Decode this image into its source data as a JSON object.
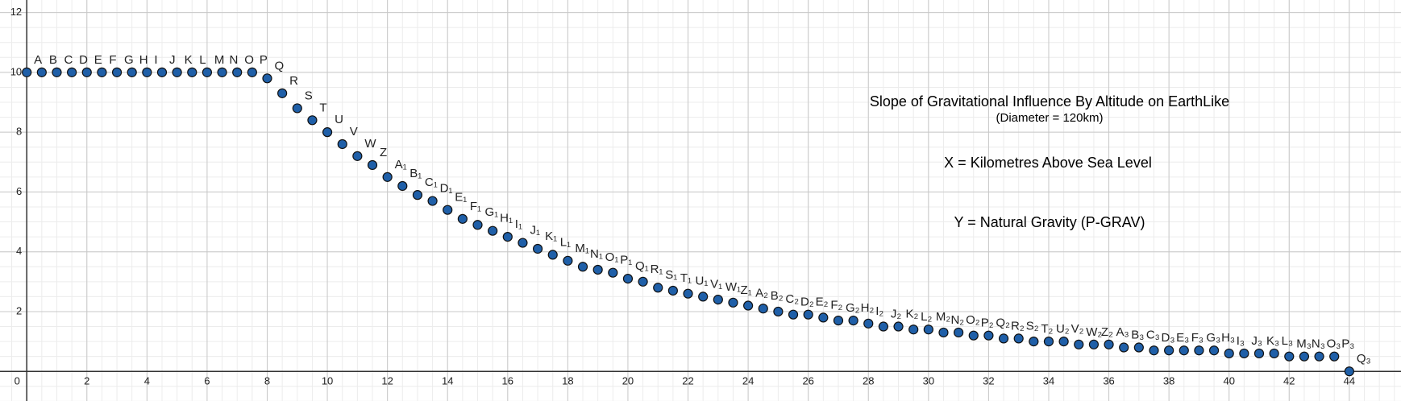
{
  "chart_data": {
    "type": "scatter",
    "annotations": [
      "Slope of Gravitational Influence By Altitude on EarthLike",
      "(Diameter = 120km)",
      "X = Kilometres Above Sea Level",
      "Y = Natural Gravity (P-GRAV)"
    ],
    "x": [
      0,
      0.5,
      1,
      1.5,
      2,
      2.5,
      3,
      3.5,
      4,
      4.5,
      5,
      5.5,
      6,
      6.5,
      7,
      7.5,
      8,
      8.5,
      9,
      9.5,
      10,
      10.5,
      11,
      11.5,
      12,
      12.5,
      13,
      13.5,
      14,
      14.5,
      15,
      15.5,
      16,
      16.5,
      17,
      17.5,
      18,
      18.5,
      19,
      19.5,
      20,
      20.5,
      21,
      21.5,
      22,
      22.5,
      23,
      23.5,
      24,
      24.5,
      25,
      25.5,
      26,
      26.5,
      27,
      27.5,
      28,
      28.5,
      29,
      29.5,
      30,
      30.5,
      31,
      31.5,
      32,
      32.5,
      33,
      33.5,
      34,
      34.5,
      35,
      35.5,
      36,
      36.5,
      37,
      37.5,
      38,
      38.5,
      39,
      39.5,
      40,
      40.5,
      41,
      41.5,
      42,
      42.5,
      43,
      43.5,
      44
    ],
    "values": [
      10,
      10,
      10,
      10,
      10,
      10,
      10,
      10,
      10,
      10,
      10,
      10,
      10,
      10,
      10,
      10,
      9.8,
      9.3,
      8.8,
      8.4,
      8.0,
      7.6,
      7.2,
      6.9,
      6.5,
      6.2,
      5.9,
      5.7,
      5.4,
      5.1,
      4.9,
      4.7,
      4.5,
      4.3,
      4.1,
      3.9,
      3.7,
      3.5,
      3.4,
      3.3,
      3.1,
      3.0,
      2.8,
      2.7,
      2.6,
      2.5,
      2.4,
      2.3,
      2.2,
      2.1,
      2.0,
      1.9,
      1.9,
      1.8,
      1.7,
      1.7,
      1.6,
      1.5,
      1.5,
      1.4,
      1.4,
      1.3,
      1.3,
      1.2,
      1.2,
      1.1,
      1.1,
      1.0,
      1.0,
      1.0,
      0.9,
      0.9,
      0.9,
      0.8,
      0.8,
      0.7,
      0.7,
      0.7,
      0.7,
      0.7,
      0.6,
      0.6,
      0.6,
      0.6,
      0.5,
      0.5,
      0.5,
      0.5,
      0
    ],
    "point_labels": [
      "A",
      "B",
      "C",
      "D",
      "E",
      "F",
      "G",
      "H",
      "I",
      "J",
      "K",
      "L",
      "M",
      "N",
      "O",
      "P",
      "Q",
      "R",
      "S",
      "T",
      "U",
      "V",
      "W",
      "Z",
      "A₁",
      "B₁",
      "C₁",
      "D₁",
      "E₁",
      "F₁",
      "G₁",
      "H₁",
      "I₁",
      "J₁",
      "K₁",
      "L₁",
      "M₁",
      "N₁",
      "O₁",
      "P₁",
      "Q₁",
      "R₁",
      "S₁",
      "T₁",
      "U₁",
      "V₁",
      "W₁",
      "Z₁",
      "A₂",
      "B₂",
      "C₂",
      "D₂",
      "E₂",
      "F₂",
      "G₂",
      "H₂",
      "I₂",
      "J₂",
      "K₂",
      "L₂",
      "M₂",
      "N₂",
      "O₂",
      "P₂",
      "Q₂",
      "R₂",
      "S₂",
      "T₂",
      "U₂",
      "V₂",
      "W₂",
      "Z₂",
      "A₃",
      "B₃",
      "C₃",
      "D₃",
      "E₃",
      "F₃",
      "G₃",
      "H₃",
      "I₃",
      "J₃",
      "K₃",
      "L₃",
      "M₃",
      "N₃",
      "O₃",
      "P₃",
      "Q₃"
    ],
    "color": "#1f5fa8",
    "label_color": "#2d70b3",
    "xlim": [
      -0.89,
      45.72
    ],
    "ylim": [
      -0.99,
      12.42
    ],
    "xticks": [
      0,
      2,
      4,
      6,
      8,
      10,
      12,
      14,
      16,
      18,
      20,
      22,
      24,
      26,
      28,
      30,
      32,
      34,
      36,
      38,
      40,
      42,
      44
    ],
    "yticks": [
      2,
      4,
      6,
      8,
      10,
      12
    ],
    "grid": true
  }
}
